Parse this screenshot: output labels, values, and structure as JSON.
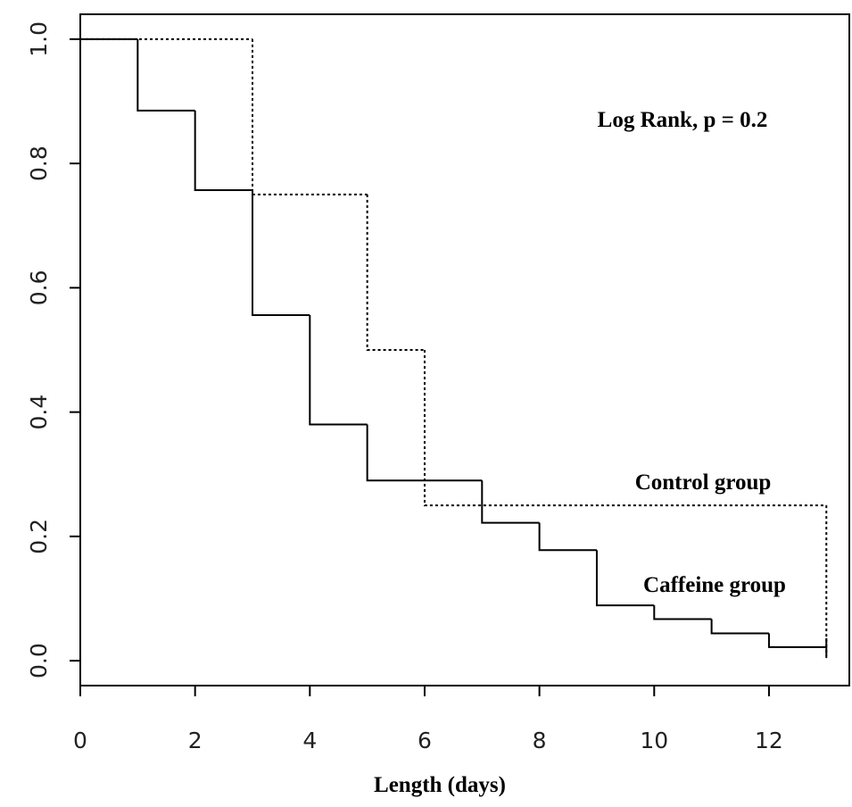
{
  "chart_data": {
    "type": "step",
    "x_label": "Length (days)",
    "annotation": "Log Rank, p = 0.2",
    "xlim": [
      0,
      13.4
    ],
    "ylim": [
      -0.04,
      1.04
    ],
    "xticks": [
      0,
      2,
      4,
      6,
      8,
      10,
      12
    ],
    "yticks": [
      {
        "value": 0,
        "label": "0.0"
      },
      0.2,
      0.4,
      0.6,
      0.8,
      {
        "value": 1,
        "label": "1.0"
      }
    ],
    "series": [
      {
        "name": "Caffeine group",
        "color": "#000000",
        "dash": false,
        "x": [
          0,
          1,
          2,
          3,
          4,
          5,
          7,
          8,
          9,
          10,
          11,
          12,
          13
        ],
        "values": [
          1,
          0.885,
          0.757,
          0.556,
          0.38,
          0.29,
          0.222,
          0.178,
          0.089,
          0.067,
          0.044,
          0.022,
          0.022
        ]
      },
      {
        "name": "Control group",
        "color": "#000000",
        "dash": true,
        "x": [
          0,
          3,
          5,
          6,
          13
        ],
        "values": [
          1,
          0.75,
          0.5,
          0.25,
          0
        ]
      }
    ]
  }
}
